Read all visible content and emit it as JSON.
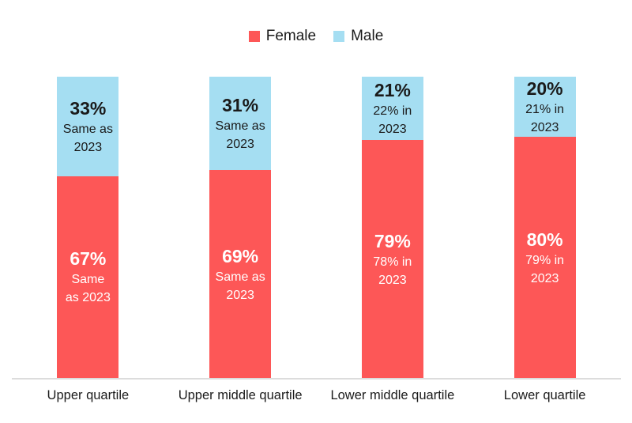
{
  "legend": {
    "female": "Female",
    "male": "Male"
  },
  "colors": {
    "female": "#fd5757",
    "male": "#a5def2",
    "axis_line": "#dcdcdc",
    "dark_text": "#1a1a1a",
    "light_text": "#ffffff"
  },
  "chart_data": {
    "type": "bar",
    "subtype": "stacked-100-percent",
    "categories": [
      "Upper quartile",
      "Upper middle quartile",
      "Lower middle quartile",
      "Lower quartile"
    ],
    "series": [
      {
        "name": "Female",
        "color": "#fd5757",
        "values": [
          67,
          69,
          79,
          80
        ]
      },
      {
        "name": "Male",
        "color": "#a5def2",
        "values": [
          33,
          31,
          21,
          20
        ]
      }
    ],
    "annotations": {
      "female_notes": [
        "Same as 2023",
        "Same as 2023",
        "78% in 2023",
        "79% in 2023"
      ],
      "male_notes": [
        "Same as 2023",
        "Same as 2023",
        "22% in 2023",
        "21% in 2023"
      ]
    },
    "title": "",
    "xlabel": "",
    "ylabel": "",
    "ylim": [
      0,
      100
    ],
    "grid": false,
    "legend_position": "top"
  },
  "bars": [
    {
      "category": "Upper quartile",
      "male": {
        "value": 33,
        "pct": "33%",
        "note1": "Same as",
        "note2": "2023"
      },
      "female": {
        "value": 67,
        "pct": "67%",
        "note1": "Same",
        "note2": "as 2023"
      }
    },
    {
      "category": "Upper middle quartile",
      "male": {
        "value": 31,
        "pct": "31%",
        "note1": "Same as",
        "note2": "2023"
      },
      "female": {
        "value": 69,
        "pct": "69%",
        "note1": "Same as",
        "note2": "2023"
      }
    },
    {
      "category": "Lower middle quartile",
      "male": {
        "value": 21,
        "pct": "21%",
        "note1": "22% in",
        "note2": "2023"
      },
      "female": {
        "value": 79,
        "pct": "79%",
        "note1": "78% in",
        "note2": "2023"
      }
    },
    {
      "category": "Lower quartile",
      "male": {
        "value": 20,
        "pct": "20%",
        "note1": "21% in",
        "note2": "2023"
      },
      "female": {
        "value": 80,
        "pct": "80%",
        "note1": "79% in",
        "note2": "2023"
      }
    }
  ]
}
